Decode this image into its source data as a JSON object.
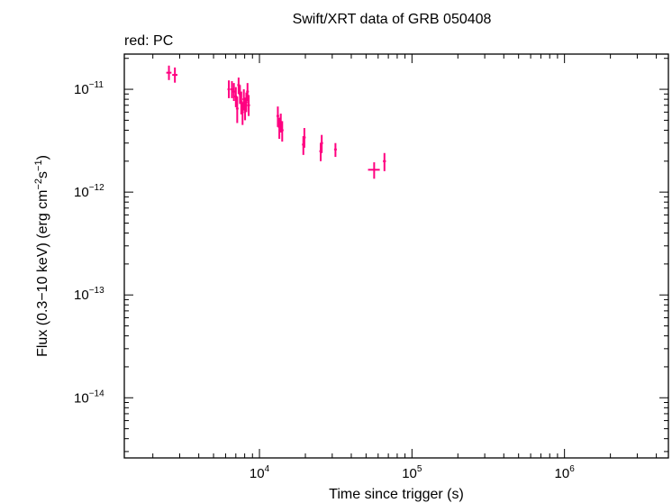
{
  "chart_data": {
    "type": "scatter",
    "title": "Swift/XRT data of GRB 050408",
    "subtitle": "red: PC",
    "xlabel": "Time since trigger (s)",
    "ylabel_parts": [
      "Flux (0.3",
      "10 keV) (erg cm",
      "s",
      ")"
    ],
    "ylabel_minus": "−",
    "ylabel_exps": [
      "−2",
      "−1"
    ],
    "x_scale": "log",
    "y_scale": "log",
    "xlim": [
      1300,
      4800000
    ],
    "ylim": [
      2.6e-15,
      2.2e-11
    ],
    "x_major_ticks": [
      {
        "value": 10000,
        "base": "10",
        "exp": "4"
      },
      {
        "value": 100000,
        "base": "10",
        "exp": "5"
      },
      {
        "value": 1000000,
        "base": "10",
        "exp": "6"
      }
    ],
    "y_major_ticks": [
      {
        "value": 1e-11,
        "base": "10",
        "exp": "−11"
      },
      {
        "value": 1e-12,
        "base": "10",
        "exp": "−12"
      },
      {
        "value": 1e-13,
        "base": "10",
        "exp": "−13"
      },
      {
        "value": 1e-14,
        "base": "10",
        "exp": "−14"
      }
    ],
    "color": "#ff0080",
    "series": [
      {
        "points": [
          {
            "x": 2550,
            "xerr": [
              100,
              100
            ],
            "y": 1.45e-11,
            "yerr": [
              2.2e-12,
              2.5e-12
            ]
          },
          {
            "x": 2790,
            "xerr": [
              110,
              110
            ],
            "y": 1.38e-11,
            "yerr": [
              2.2e-12,
              2.5e-12
            ]
          },
          {
            "x": 6300,
            "xerr": [
              40,
              40
            ],
            "y": 1e-11,
            "yerr": [
              1.8e-12,
              2.2e-12
            ]
          },
          {
            "x": 6600,
            "xerr": [
              40,
              40
            ],
            "y": 1e-11,
            "yerr": [
              1.8e-12,
              2e-12
            ]
          },
          {
            "x": 6800,
            "xerr": [
              40,
              40
            ],
            "y": 9.5e-12,
            "yerr": [
              1.8e-12,
              2e-12
            ]
          },
          {
            "x": 7000,
            "xerr": [
              40,
              40
            ],
            "y": 8.5e-12,
            "yerr": [
              1.8e-12,
              2e-12
            ]
          },
          {
            "x": 7150,
            "xerr": [
              40,
              40
            ],
            "y": 6.5e-12,
            "yerr": [
              1.8e-12,
              2e-12
            ]
          },
          {
            "x": 7300,
            "xerr": [
              40,
              40
            ],
            "y": 1.1e-11,
            "yerr": [
              2e-12,
              2e-12
            ]
          },
          {
            "x": 7450,
            "xerr": [
              40,
              40
            ],
            "y": 9e-12,
            "yerr": [
              1.8e-12,
              2e-12
            ]
          },
          {
            "x": 7600,
            "xerr": [
              40,
              40
            ],
            "y": 7.5e-12,
            "yerr": [
              1.8e-12,
              2e-12
            ]
          },
          {
            "x": 7750,
            "xerr": [
              40,
              40
            ],
            "y": 6e-12,
            "yerr": [
              1.5e-12,
              1.5e-12
            ]
          },
          {
            "x": 7900,
            "xerr": [
              40,
              40
            ],
            "y": 8e-12,
            "yerr": [
              1.8e-12,
              2e-12
            ]
          },
          {
            "x": 8050,
            "xerr": [
              40,
              40
            ],
            "y": 6.5e-12,
            "yerr": [
              1.5e-12,
              1.8e-12
            ]
          },
          {
            "x": 8200,
            "xerr": [
              40,
              40
            ],
            "y": 7.5e-12,
            "yerr": [
              1.5e-12,
              1.8e-12
            ]
          },
          {
            "x": 8350,
            "xerr": [
              40,
              40
            ],
            "y": 9.5e-12,
            "yerr": [
              1.8e-12,
              2e-12
            ]
          },
          {
            "x": 8500,
            "xerr": [
              40,
              40
            ],
            "y": 7e-12,
            "yerr": [
              1.5e-12,
              1.8e-12
            ]
          },
          {
            "x": 13200,
            "xerr": [
              60,
              60
            ],
            "y": 5.5e-12,
            "yerr": [
              1.2e-12,
              1.3e-12
            ]
          },
          {
            "x": 13500,
            "xerr": [
              60,
              60
            ],
            "y": 4.3e-12,
            "yerr": [
              1e-12,
              1e-12
            ]
          },
          {
            "x": 13800,
            "xerr": [
              60,
              60
            ],
            "y": 4.8e-12,
            "yerr": [
              1e-12,
              1e-12
            ]
          },
          {
            "x": 14100,
            "xerr": [
              60,
              60
            ],
            "y": 4e-12,
            "yerr": [
              9e-13,
              9e-13
            ]
          },
          {
            "x": 19400,
            "xerr": [
              80,
              80
            ],
            "y": 2.9e-12,
            "yerr": [
              6e-13,
              6e-13
            ]
          },
          {
            "x": 19700,
            "xerr": [
              80,
              80
            ],
            "y": 3.4e-12,
            "yerr": [
              7e-13,
              8e-13
            ]
          },
          {
            "x": 25200,
            "xerr": [
              100,
              100
            ],
            "y": 2.5e-12,
            "yerr": [
              5e-13,
              5e-13
            ]
          },
          {
            "x": 25600,
            "xerr": [
              100,
              100
            ],
            "y": 3e-12,
            "yerr": [
              6e-13,
              6e-13
            ]
          },
          {
            "x": 31500,
            "xerr": [
              200,
              200
            ],
            "y": 2.6e-12,
            "yerr": [
              4e-13,
              4e-13
            ]
          },
          {
            "x": 56500,
            "xerr": [
              5000,
              5000
            ],
            "y": 1.65e-12,
            "yerr": [
              3e-13,
              3e-13
            ]
          },
          {
            "x": 66000,
            "xerr": [
              1500,
              1500
            ],
            "y": 2e-12,
            "yerr": [
              4e-13,
              4e-13
            ]
          }
        ]
      }
    ]
  }
}
